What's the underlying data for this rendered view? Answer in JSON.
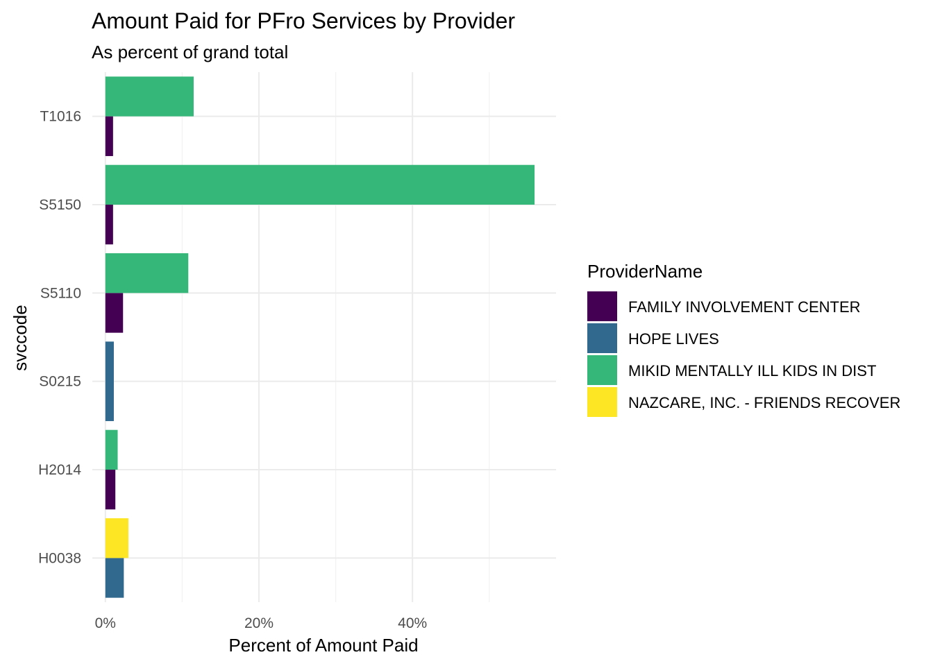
{
  "chart_data": {
    "type": "bar",
    "orientation": "horizontal",
    "position": "dodge",
    "title": "Amount Paid for PFro Services by Provider",
    "subtitle": "As percent of grand total",
    "xlabel": "Percent of Amount Paid",
    "ylabel": "svccode",
    "x_ticks": [
      "0%",
      "20%",
      "40%"
    ],
    "x_tick_values": [
      0,
      20,
      40
    ],
    "xlim": [
      -1.7,
      58.7
    ],
    "categories": [
      "H0038",
      "H2014",
      "S0215",
      "S5110",
      "S5150",
      "T1016"
    ],
    "legend": {
      "title": "ProviderName",
      "placement": "right"
    },
    "series": [
      {
        "name": "FAMILY INVOLVEMENT CENTER",
        "color": "#440154"
      },
      {
        "name": "HOPE LIVES",
        "color": "#31688E"
      },
      {
        "name": "MIKID MENTALLY ILL KIDS IN DIST",
        "color": "#35B779"
      },
      {
        "name": "NAZCARE, INC. - FRIENDS RECOVER",
        "color": "#FDE725"
      }
    ],
    "bars": [
      {
        "category": "H0038",
        "series": "HOPE LIVES",
        "value": 2.4,
        "slot": 0,
        "slots": 2
      },
      {
        "category": "H0038",
        "series": "NAZCARE, INC. - FRIENDS RECOVER",
        "value": 3.0,
        "slot": 1,
        "slots": 2
      },
      {
        "category": "H2014",
        "series": "FAMILY INVOLVEMENT CENTER",
        "value": 1.3,
        "slot": 0,
        "slots": 2
      },
      {
        "category": "H2014",
        "series": "MIKID MENTALLY ILL KIDS IN DIST",
        "value": 1.6,
        "slot": 1,
        "slots": 2
      },
      {
        "category": "S0215",
        "series": "HOPE LIVES",
        "value": 1.1,
        "slot": 0,
        "slots": 1
      },
      {
        "category": "S5110",
        "series": "FAMILY INVOLVEMENT CENTER",
        "value": 2.3,
        "slot": 0,
        "slots": 2
      },
      {
        "category": "S5110",
        "series": "MIKID MENTALLY ILL KIDS IN DIST",
        "value": 10.8,
        "slot": 1,
        "slots": 2
      },
      {
        "category": "S5150",
        "series": "FAMILY INVOLVEMENT CENTER",
        "value": 1.0,
        "slot": 0,
        "slots": 2
      },
      {
        "category": "S5150",
        "series": "MIKID MENTALLY ILL KIDS IN DIST",
        "value": 55.9,
        "slot": 1,
        "slots": 2
      },
      {
        "category": "T1016",
        "series": "FAMILY INVOLVEMENT CENTER",
        "value": 1.0,
        "slot": 0,
        "slots": 2
      },
      {
        "category": "T1016",
        "series": "MIKID MENTALLY ILL KIDS IN DIST",
        "value": 11.5,
        "slot": 1,
        "slots": 2
      }
    ],
    "grid": true
  }
}
